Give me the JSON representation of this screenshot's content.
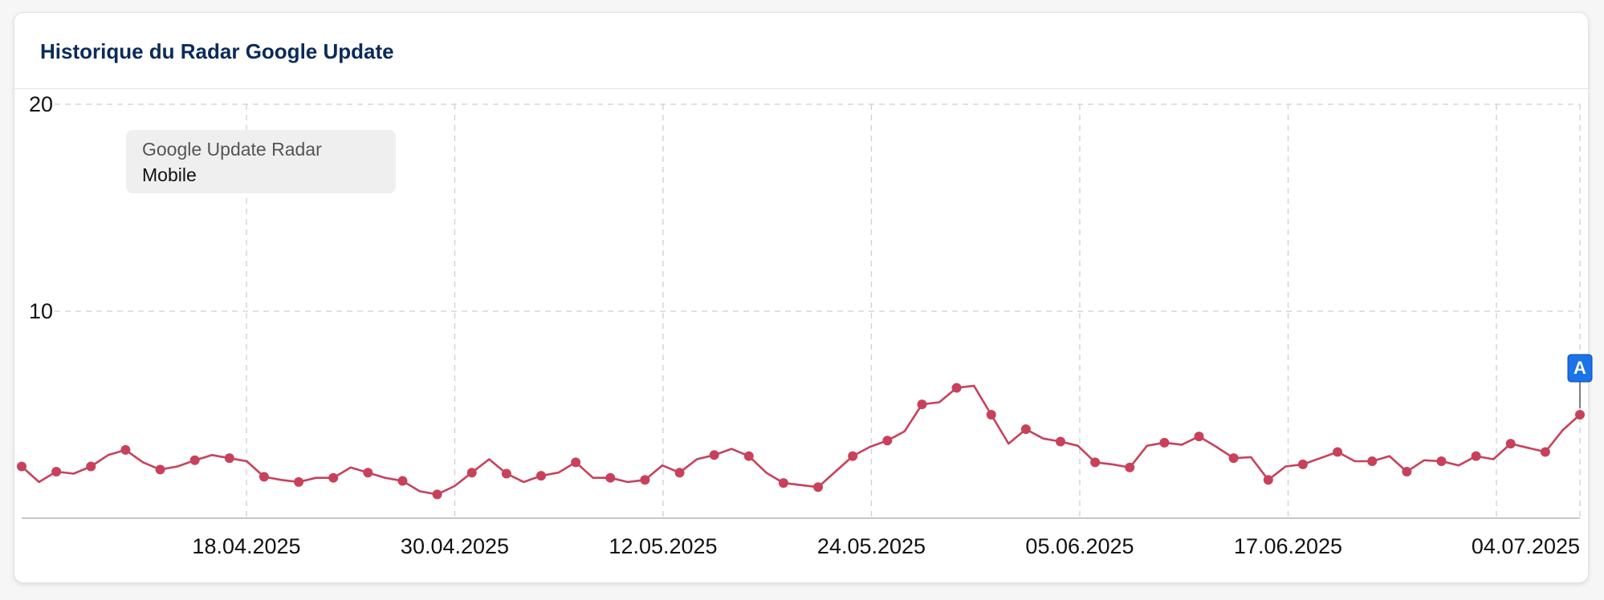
{
  "panel": {
    "title": "Historique du Radar Google Update"
  },
  "legend": {
    "title": "Google Update Radar",
    "item": "Mobile"
  },
  "annotation": {
    "label": "A",
    "color": "#1a73e8"
  },
  "colors": {
    "series": "#c8415b",
    "grid": "#cfcfcf",
    "axis": "#b5b5b5"
  },
  "chart_data": {
    "type": "line",
    "grid": true,
    "legend_position": "top-left",
    "ylim": [
      0,
      20
    ],
    "yticks": [
      10,
      20
    ],
    "xticks": [
      "18.04.2025",
      "30.04.2025",
      "12.05.2025",
      "24.05.2025",
      "05.06.2025",
      "17.06.2025",
      "04.07.2025"
    ],
    "series": [
      {
        "values": [
          2.5,
          1.75,
          2.25,
          2.15,
          2.5,
          3.05,
          3.3,
          2.7,
          2.35,
          2.5,
          2.8,
          3.05,
          2.9,
          2.75,
          2.0,
          1.85,
          1.75,
          1.95,
          1.95,
          2.45,
          2.2,
          1.95,
          1.8,
          1.3,
          1.15,
          1.55,
          2.2,
          2.85,
          2.15,
          1.75,
          2.05,
          2.2,
          2.7,
          1.95,
          1.95,
          1.75,
          1.85,
          2.55,
          2.2,
          2.85,
          3.05,
          3.35,
          3.0,
          2.2,
          1.7,
          1.6,
          1.5,
          2.25,
          3.0,
          3.45,
          3.75,
          4.2,
          5.5,
          5.6,
          6.3,
          6.4,
          5.0,
          3.6,
          4.3,
          3.85,
          3.7,
          3.5,
          2.7,
          2.6,
          2.45,
          3.5,
          3.65,
          3.55,
          3.95,
          3.45,
          2.9,
          2.95,
          1.85,
          2.5,
          2.6,
          2.9,
          3.2,
          2.75,
          2.75,
          3.0,
          2.25,
          2.8,
          2.75,
          2.55,
          3.0,
          2.85,
          3.6,
          3.4,
          3.2,
          4.25,
          5.0
        ]
      }
    ],
    "annotations": [
      {
        "label": "A",
        "index": 90
      }
    ]
  }
}
